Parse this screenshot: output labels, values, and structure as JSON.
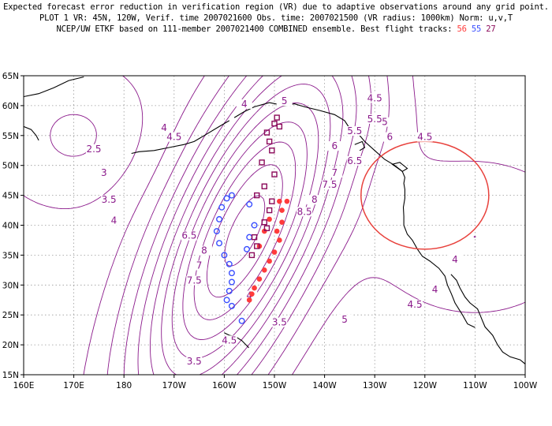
{
  "header": {
    "line1": "Expected forecast error reduction in verification region (VR) due to adaptive observations around any grid point.",
    "line2": "PLOT 1 VR: 45N, 120W, Verif. time 2007021600 Obs. time: 2007021500 (VR radius: 1000km) Norm: u,v,T",
    "line3_prefix": "NCEP/UW ETKF based on 111-member 2007021400 COMBINED ensemble.  Best flight tracks:",
    "track_labels": [
      "56",
      "55",
      "27"
    ]
  },
  "colors": {
    "contour": "#8b1a8b",
    "verification_circle": "#e8413c",
    "track_56": "#ff3b3b",
    "track_55": "#3a4fff",
    "track_27": "#8b0a5a",
    "coastline": "#000000",
    "grid": "#9a9a9a"
  },
  "axes": {
    "lat_labels": [
      "65N",
      "60N",
      "55N",
      "50N",
      "45N",
      "40N",
      "35N",
      "30N",
      "25N",
      "20N",
      "15N"
    ],
    "lon_labels": [
      "160E",
      "170E",
      "180",
      "170W",
      "160W",
      "150W",
      "140W",
      "130W",
      "120W",
      "110W",
      "100W"
    ]
  },
  "contour_labels": [
    "2.5",
    "3",
    "3.5",
    "4",
    "4",
    "4",
    "4.5",
    "4.5",
    "4.5",
    "5",
    "5",
    "5.5",
    "5.5",
    "6",
    "6",
    "6.5",
    "6.5",
    "7",
    "7",
    "7.5",
    "7.5",
    "8",
    "8",
    "8.5",
    "4",
    "3.5",
    "4",
    "4.5",
    "4",
    "3.5",
    "4.5",
    "5"
  ],
  "verification_region": {
    "center_lat": 45,
    "center_lon": -120,
    "radius_km": 1000
  },
  "tracks": [
    {
      "name": "56",
      "symbol": "dot",
      "points": [
        [
          44,
          -147.5
        ],
        [
          44,
          -149
        ],
        [
          42.5,
          -148.5
        ],
        [
          40.5,
          -148.5
        ],
        [
          39,
          -149.5
        ],
        [
          37.5,
          -149
        ],
        [
          35.5,
          -150
        ],
        [
          34,
          -151
        ],
        [
          32.5,
          -152
        ],
        [
          31,
          -153
        ],
        [
          29.5,
          -154
        ],
        [
          28.5,
          -154.5
        ],
        [
          27.5,
          -155
        ],
        [
          41,
          -151
        ],
        [
          39,
          -152
        ],
        [
          36.5,
          -153
        ]
      ]
    },
    {
      "name": "55",
      "symbol": "circle",
      "points": [
        [
          45,
          -158.5
        ],
        [
          44.5,
          -159.5
        ],
        [
          43,
          -160.5
        ],
        [
          41,
          -161
        ],
        [
          39,
          -161.5
        ],
        [
          37,
          -161
        ],
        [
          35,
          -160
        ],
        [
          33.5,
          -159
        ],
        [
          32,
          -158.5
        ],
        [
          30.5,
          -158.5
        ],
        [
          29,
          -159
        ],
        [
          27.5,
          -159.5
        ],
        [
          26.5,
          -158.5
        ],
        [
          24,
          -156.5
        ],
        [
          38,
          -155
        ],
        [
          36,
          -155.5
        ],
        [
          43.5,
          -155
        ],
        [
          40,
          -154
        ]
      ]
    },
    {
      "name": "27",
      "symbol": "square",
      "points": [
        [
          58,
          -149.5
        ],
        [
          57,
          -150
        ],
        [
          56.5,
          -149
        ],
        [
          55.5,
          -151.5
        ],
        [
          54,
          -151
        ],
        [
          52.5,
          -150.5
        ],
        [
          50.5,
          -152.5
        ],
        [
          48.5,
          -150
        ],
        [
          46.5,
          -152
        ],
        [
          45,
          -153.5
        ],
        [
          44,
          -150.5
        ],
        [
          42.5,
          -151
        ],
        [
          40.5,
          -152
        ],
        [
          39.5,
          -151.5
        ],
        [
          38,
          -154
        ],
        [
          36.5,
          -153.5
        ],
        [
          35,
          -154.5
        ]
      ]
    }
  ]
}
